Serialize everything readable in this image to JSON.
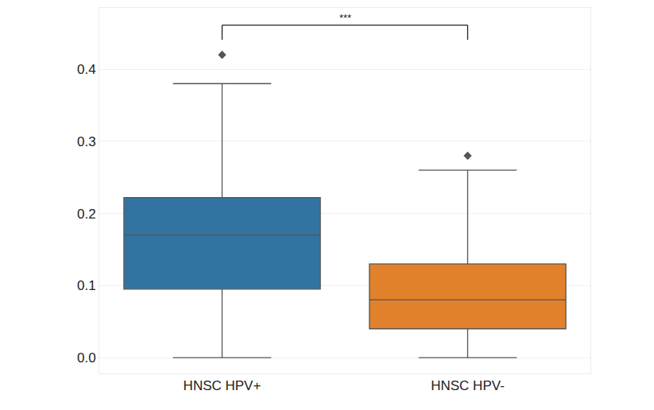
{
  "chart_data": {
    "type": "box",
    "categories": [
      "HNSC HPV+",
      "HNSC HPV-"
    ],
    "colors": [
      "#3274a1",
      "#e1812c"
    ],
    "lower_whisker": [
      0.0,
      0.0
    ],
    "q1": [
      0.095,
      0.04
    ],
    "median": [
      0.17,
      0.08
    ],
    "q3": [
      0.222,
      0.13
    ],
    "upper_whisker": [
      0.38,
      0.26
    ],
    "outliers": [
      [
        0.42
      ],
      [
        0.28
      ]
    ],
    "annotations": [
      {
        "text": "***"
      }
    ],
    "ylim": [
      -0.022,
      0.485
    ],
    "yticks": [
      0.0,
      0.1,
      0.2,
      0.3,
      0.4
    ],
    "grid": true
  }
}
